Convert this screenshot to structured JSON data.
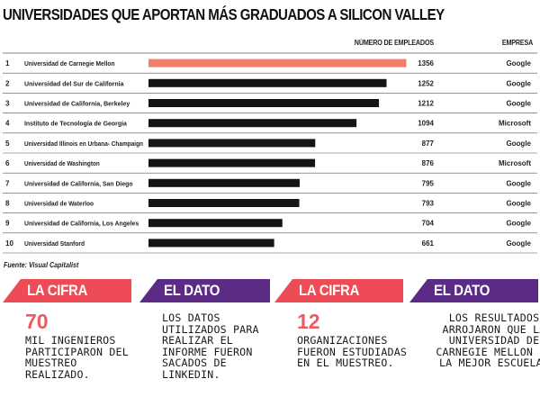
{
  "title": "UNIVERSIDADES QUE APORTAN MÁS GRADUADOS A SILICON VALLEY",
  "headers": {
    "employees": "NÚMERO DE EMPLEADOS",
    "company": "EMPRESA"
  },
  "source": "Fuente:  Visual Capitalist",
  "colors": {
    "highlight": "#ef7f6b",
    "bar": "#151515",
    "rule": "#555555",
    "red": "#ed4b55",
    "purple": "#5b2b86"
  },
  "chart_data": {
    "type": "bar",
    "orientation": "horizontal",
    "title": "UNIVERSIDADES QUE APORTAN MÁS GRADUADOS A SILICON VALLEY",
    "xlim": [
      0,
      1420
    ],
    "rows": [
      {
        "rank": "1",
        "university": "Universidad de Carnegie Mellon",
        "employees": 1356,
        "employees_label": "1356",
        "company": "Google",
        "highlight": true
      },
      {
        "rank": "2",
        "university": "Universidad del Sur de California",
        "employees": 1252,
        "employees_label": "1252",
        "company": "Google",
        "highlight": false
      },
      {
        "rank": "3",
        "university": "Universidad de California, Berkeley",
        "employees": 1212,
        "employees_label": "1212",
        "company": "Google",
        "highlight": false
      },
      {
        "rank": "4",
        "university": "Instituto de Tecnología de Georgia",
        "employees": 1094,
        "employees_label": "1094",
        "company": "Microsoft",
        "highlight": false
      },
      {
        "rank": "5",
        "university": "Universidad Illinois en Urbana- Champaign",
        "employees": 877,
        "employees_label": "877",
        "company": "Google",
        "highlight": false
      },
      {
        "rank": "6",
        "university": "Universidad de Washington",
        "employees": 876,
        "employees_label": "876",
        "company": "Microsoft",
        "highlight": false
      },
      {
        "rank": "7",
        "university": "Universidad de California, San Diego",
        "employees": 795,
        "employees_label": "795",
        "company": "Google",
        "highlight": false
      },
      {
        "rank": "8",
        "university": "Universidad de Waterloo",
        "employees": 793,
        "employees_label": "793",
        "company": "Google",
        "highlight": false
      },
      {
        "rank": "9",
        "university": "Universidad de California, Los Angeles",
        "employees": 704,
        "employees_label": "704",
        "company": "Google",
        "highlight": false
      },
      {
        "rank": "10",
        "university": "Universidad Stanford",
        "employees": 661,
        "employees_label": "661",
        "company": "Google",
        "highlight": false
      }
    ]
  },
  "cards": [
    {
      "banner": "LA CIFRA",
      "big": "70",
      "body": "MIL INGENIEROS PARTICIPARON DEL MUESTREO REALIZADO."
    },
    {
      "banner": "EL DATO",
      "body": "LOS DATOS UTILIZADOS PARA REALIZAR EL INFORME FUERON SACADOS DE LINKEDIN."
    },
    {
      "banner": "LA CIFRA",
      "big": "12",
      "body": "ORGANIZACIONES FUERON ESTUDIADAS EN EL MUESTREO."
    },
    {
      "banner": "EL DATO",
      "body": "LOS RESULTADOS ARROJARON QUE LA UNIVERSIDAD DE CARNEGIE MELLON ES LA MEJOR ESCUELA."
    }
  ]
}
